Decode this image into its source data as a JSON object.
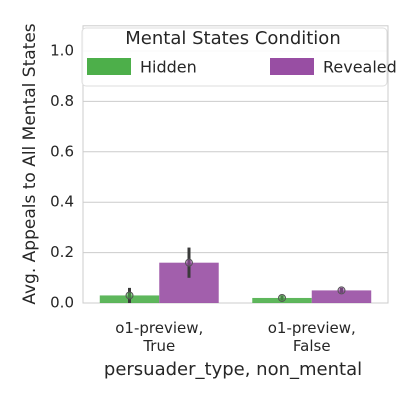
{
  "chart_data": {
    "type": "bar",
    "y_label": "Avg. Appeals to All Mental States",
    "x_label": "persuader_type, non_mental",
    "legend_title": "Mental States Condition",
    "legend_position": "upper center",
    "categories": [
      "o1-preview,\nTrue",
      "o1-preview,\nFalse"
    ],
    "series": [
      {
        "name": "Hidden",
        "color": "#4daf4a",
        "values": [
          0.03,
          0.02
        ],
        "errors": [
          0.03,
          0.01
        ]
      },
      {
        "name": "Revealed",
        "color": "#984ea3",
        "values": [
          0.16,
          0.05
        ],
        "errors": [
          0.06,
          0.01
        ]
      }
    ],
    "ylim": [
      0,
      1.1
    ],
    "yticks": [
      {
        "value": 0,
        "label": "0.0"
      },
      0.2,
      0.4,
      0.6,
      0.8,
      {
        "value": 1,
        "label": "1.0"
      }
    ],
    "grid": true
  }
}
